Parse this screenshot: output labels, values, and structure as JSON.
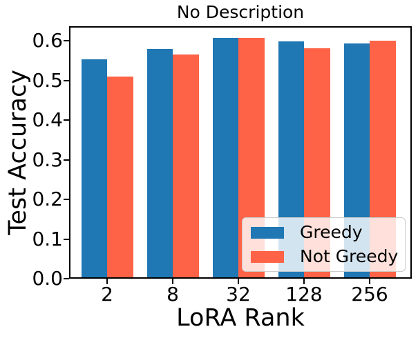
{
  "chart_data": {
    "type": "bar",
    "title": "No Description",
    "xlabel": "LoRA Rank",
    "ylabel": "Test Accuracy",
    "categories": [
      "2",
      "8",
      "32",
      "128",
      "256"
    ],
    "series": [
      {
        "name": "Greedy",
        "color": "#1f77b4",
        "values": [
          0.553,
          0.579,
          0.607,
          0.598,
          0.593
        ]
      },
      {
        "name": "Not Greedy",
        "color": "#ff6347",
        "values": [
          0.51,
          0.566,
          0.607,
          0.582,
          0.6
        ]
      }
    ],
    "ylim": [
      0,
      0.637
    ],
    "yticks": [
      "0.0",
      "0.1",
      "0.2",
      "0.3",
      "0.4",
      "0.5",
      "0.6"
    ],
    "legend": {
      "labels": [
        "Greedy",
        "Not Greedy"
      ],
      "position": "lower right"
    },
    "grid": false,
    "axis_color": "#000000",
    "background_color": "#ffffff"
  }
}
